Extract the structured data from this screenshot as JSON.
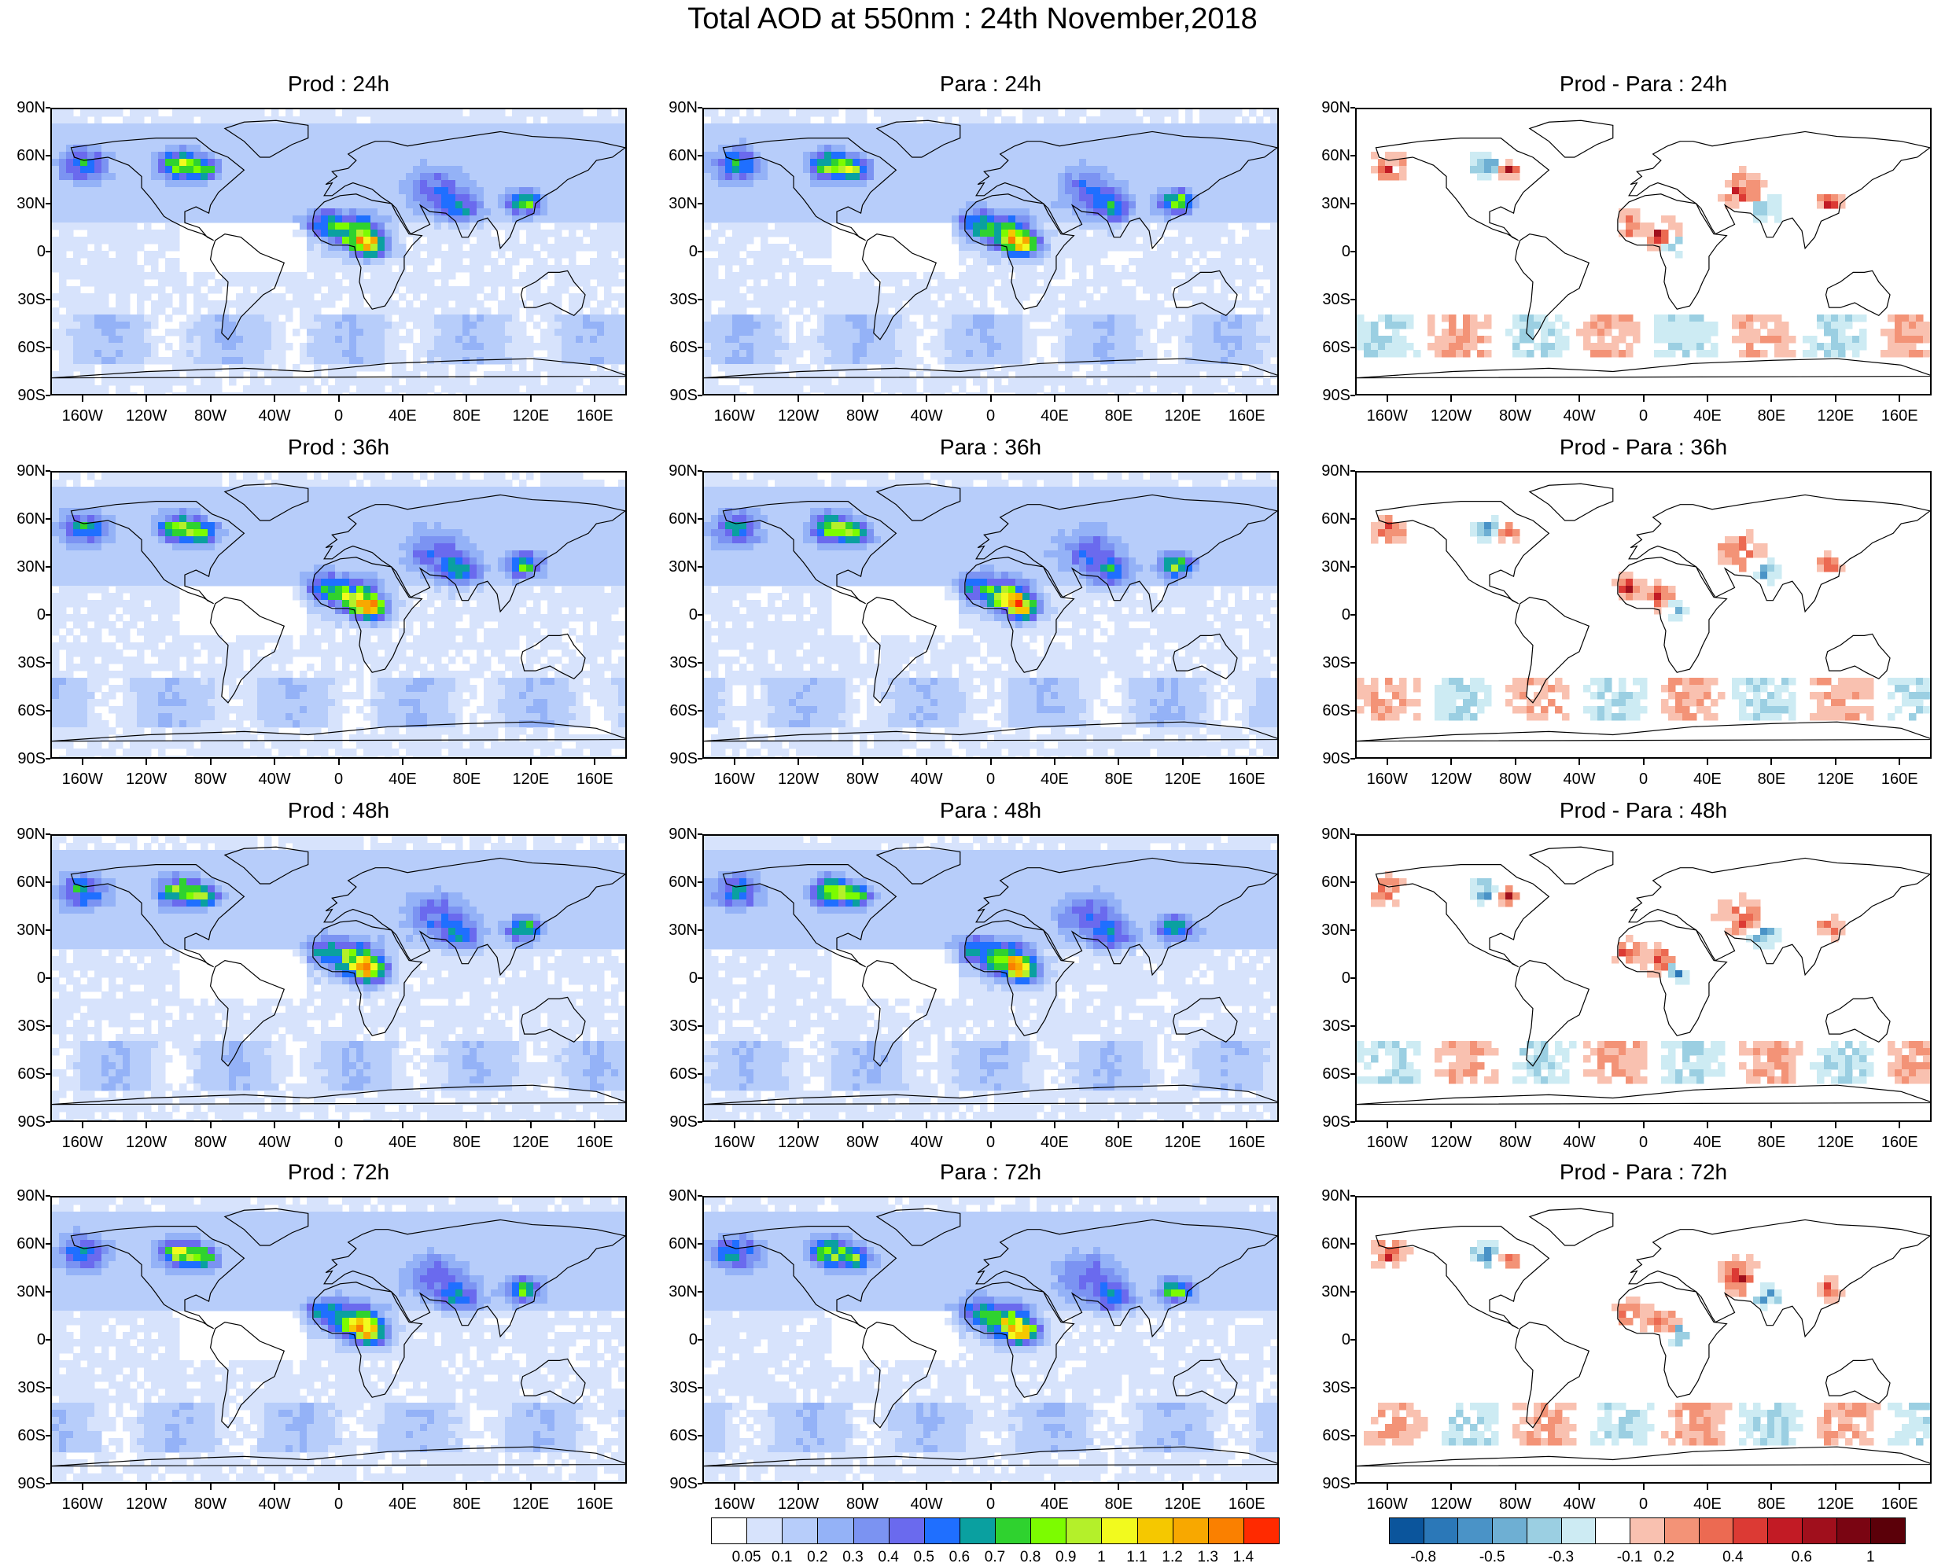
{
  "title": "Total AOD at 550nm : 24th November,2018",
  "lat_labels": [
    "90N",
    "60N",
    "30N",
    "0",
    "30S",
    "60S",
    "90S"
  ],
  "lon_labels": [
    "160W",
    "120W",
    "80W",
    "40W",
    "0",
    "40E",
    "80E",
    "120E",
    "160E"
  ],
  "panels": [
    {
      "title": "Prod : 24h",
      "kind": "aod",
      "seed": 1
    },
    {
      "title": "Para : 24h",
      "kind": "aod",
      "seed": 2
    },
    {
      "title": "Prod - Para : 24h",
      "kind": "diff",
      "seed": 3
    },
    {
      "title": "Prod : 36h",
      "kind": "aod",
      "seed": 4
    },
    {
      "title": "Para : 36h",
      "kind": "aod",
      "seed": 5
    },
    {
      "title": "Prod - Para : 36h",
      "kind": "diff",
      "seed": 6
    },
    {
      "title": "Prod : 48h",
      "kind": "aod",
      "seed": 7
    },
    {
      "title": "Para : 48h",
      "kind": "aod",
      "seed": 8
    },
    {
      "title": "Prod - Para : 48h",
      "kind": "diff",
      "seed": 9
    },
    {
      "title": "Prod : 72h",
      "kind": "aod",
      "seed": 10
    },
    {
      "title": "Para : 72h",
      "kind": "aod",
      "seed": 11
    },
    {
      "title": "Prod - Para : 72h",
      "kind": "diff",
      "seed": 12
    }
  ],
  "aod_colorbar": {
    "colors": [
      "#ffffff",
      "#d7e3fc",
      "#b7cdfa",
      "#94b2f7",
      "#7b93f2",
      "#6a6aee",
      "#1f6fff",
      "#0aa0a0",
      "#2fd22f",
      "#7cfc00",
      "#b4f02a",
      "#f2fa1e",
      "#f5c800",
      "#f8a800",
      "#fa8000",
      "#ff2a00"
    ],
    "labels": [
      "0.05",
      "0.1",
      "0.2",
      "0.3",
      "0.4",
      "0.5",
      "0.6",
      "0.7",
      "0.8",
      "0.9",
      "1",
      "1.1",
      "1.2",
      "1.3",
      "1.4"
    ]
  },
  "diff_colorbar": {
    "colors": [
      "#0b559c",
      "#2b78b8",
      "#4a93c7",
      "#6eafd3",
      "#9bcfe2",
      "#cdebf3",
      "#ffffff",
      "#f9c1b0",
      "#f39377",
      "#ec6a52",
      "#dc3a34",
      "#c21b25",
      "#a00f1c",
      "#7a0512",
      "#5b0009"
    ],
    "labels": [
      "-0.8",
      "-0.5",
      "-0.3",
      "-0.1",
      "0.2",
      "0.4",
      "0.6",
      "1"
    ]
  }
}
